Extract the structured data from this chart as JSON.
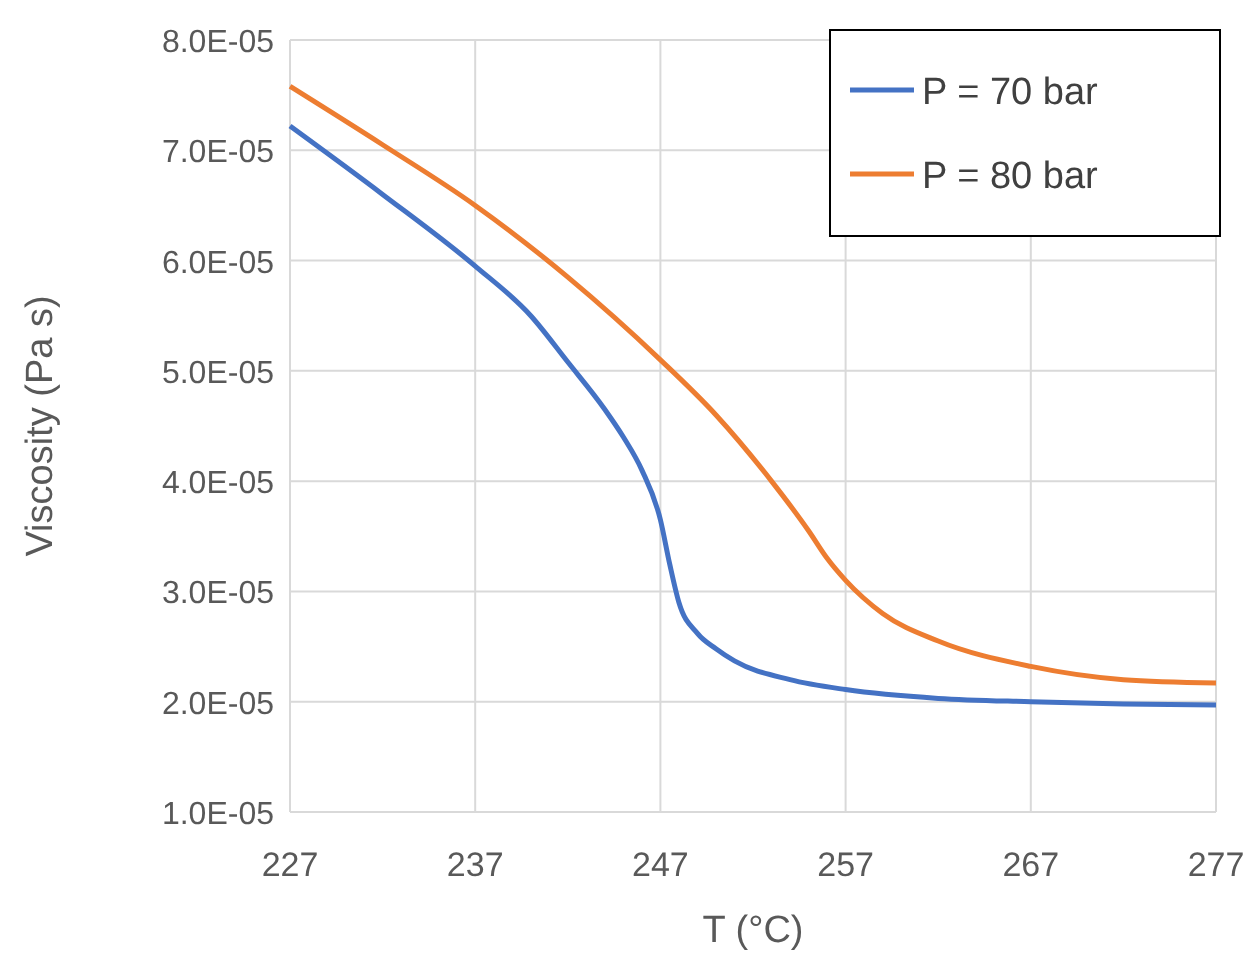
{
  "chart_data": {
    "type": "line",
    "xlabel": "T (°C)",
    "ylabel": "Viscosity (Pa s)",
    "xlim": [
      227,
      277
    ],
    "xticks": [
      227,
      237,
      247,
      257,
      267,
      277
    ],
    "ylim": [
      1e-05,
      8e-05
    ],
    "yticks": [
      {
        "value": 1e-05,
        "label": "1.0E-05"
      },
      {
        "value": 2e-05,
        "label": "2.0E-05"
      },
      {
        "value": 3e-05,
        "label": "3.0E-05"
      },
      {
        "value": 4e-05,
        "label": "4.0E-05"
      },
      {
        "value": 5e-05,
        "label": "5.0E-05"
      },
      {
        "value": 6e-05,
        "label": "6.0E-05"
      },
      {
        "value": 7e-05,
        "label": "7.0E-05"
      },
      {
        "value": 8e-05,
        "label": "8.0E-05"
      }
    ],
    "grid": true,
    "legend": "top right",
    "marker": "none",
    "line_style": "solid",
    "series": [
      {
        "name": "P = 70 bar",
        "color": "#4472c4",
        "x": [
          227,
          232,
          237,
          240,
          242,
          244,
          245,
          246,
          247,
          247.5,
          248,
          249,
          250,
          251,
          254,
          257,
          262,
          267,
          272,
          277
        ],
        "values": [
          7.22e-05,
          6.6e-05,
          5.95e-05,
          5.5e-05,
          5.08e-05,
          4.65e-05,
          4.4e-05,
          4.1e-05,
          3.65e-05,
          3.25e-05,
          2.9e-05,
          2.62e-05,
          2.48e-05,
          2.37e-05,
          2.2e-05,
          2.11e-05,
          2.03e-05,
          2e-05,
          1.98e-05,
          1.97e-05
        ]
      },
      {
        "name": "P = 80 bar",
        "color": "#ed7d31",
        "x": [
          227,
          232,
          237,
          242,
          247,
          250,
          253,
          255,
          256,
          257,
          259,
          262,
          267,
          272,
          277
        ],
        "values": [
          7.58e-05,
          7.05e-05,
          6.5e-05,
          5.85e-05,
          5.1e-05,
          4.6e-05,
          4e-05,
          3.55e-05,
          3.3e-05,
          3.1e-05,
          2.8e-05,
          2.55e-05,
          2.32e-05,
          2.2e-05,
          2.17e-05
        ]
      }
    ]
  }
}
